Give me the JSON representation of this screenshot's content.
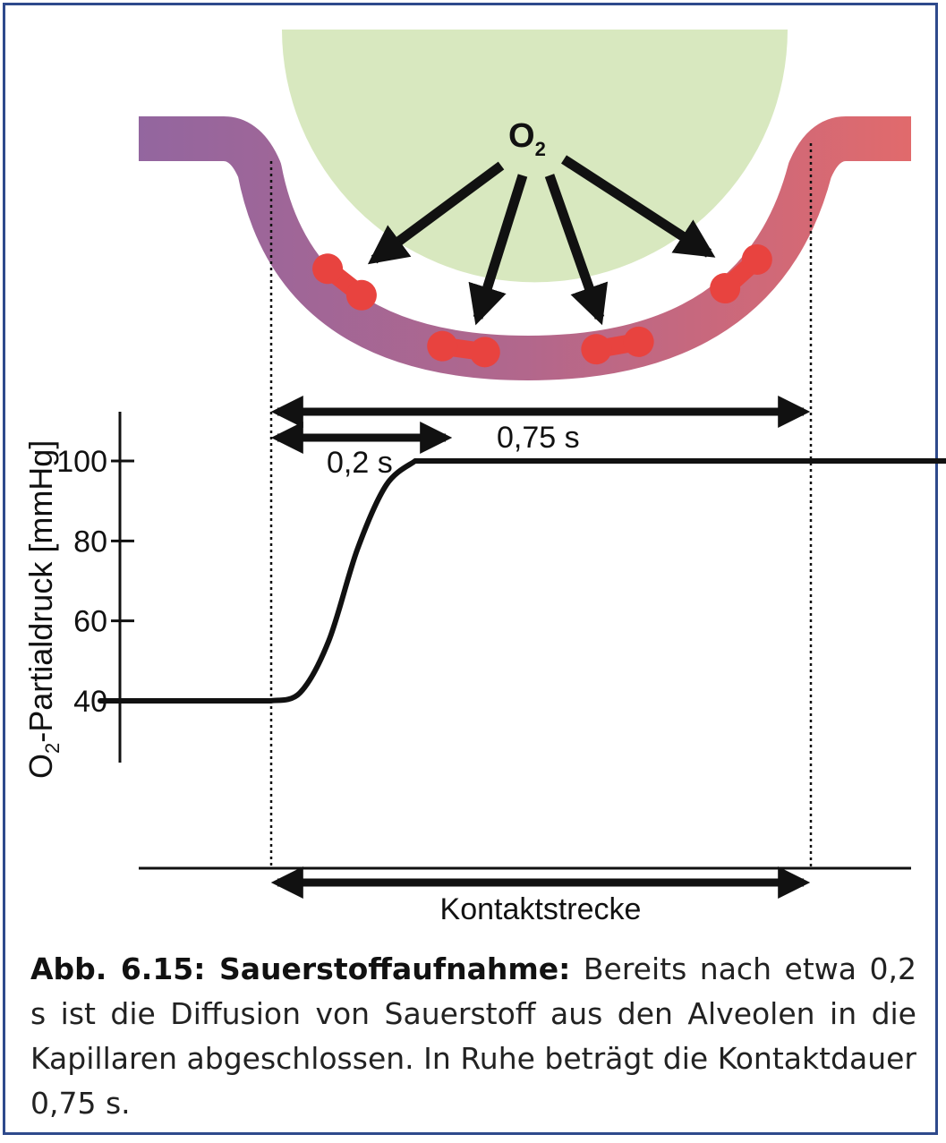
{
  "diagram": {
    "gas_label": "O",
    "gas_subscript": "2",
    "ylabel_main": "O",
    "ylabel_sub": "2",
    "ylabel_rest": "-Partialdruck [mmHg]",
    "ticks": [
      "100",
      "80",
      "60",
      "40"
    ],
    "duration_short": "0,2 s",
    "duration_long": "0,75 s",
    "contact_label": "Kontaktstrecke",
    "colors": {
      "alveolus": "#d8e8bf",
      "capillary_start": "#93669f",
      "capillary_end": "#e16a6c",
      "erythrocyte": "#e8433f",
      "line": "#111111",
      "frame": "#2e4a8c"
    }
  },
  "chart_data": {
    "type": "line",
    "ylim": [
      40,
      100
    ],
    "yticks": [
      40,
      60,
      80,
      100
    ],
    "series": [
      {
        "points": [
          [
            -0.25,
            40
          ],
          [
            0,
            40
          ],
          [
            0.04,
            42
          ],
          [
            0.08,
            55
          ],
          [
            0.12,
            78
          ],
          [
            0.16,
            94
          ],
          [
            0.2,
            100
          ],
          [
            0.75,
            100
          ],
          [
            1.0,
            100
          ]
        ]
      }
    ]
  },
  "caption": {
    "label": "Abb. 6.15: Sauerstoffaufnahme:",
    "text": " Bereits nach etwa 0,2 s ist die Diffusion von Sauerstoff aus den Alveolen in die Kapillaren abgeschlossen. In Ruhe beträgt die Kontakt­dauer 0,75 s."
  }
}
